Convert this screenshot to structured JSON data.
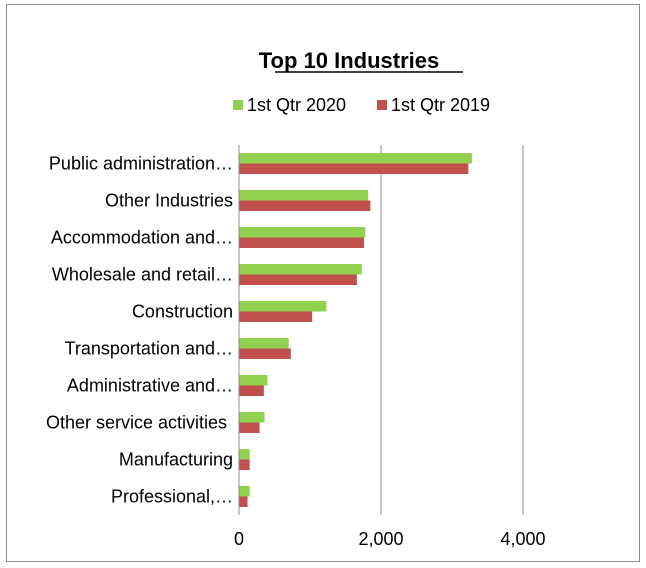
{
  "chart_data": {
    "type": "bar",
    "orientation": "horizontal",
    "title": "Top 10 Industries",
    "categories": [
      "Public administration…",
      "Other Industries",
      "Accommodation and…",
      "Wholesale and retail…",
      "Construction",
      "Transportation and…",
      "Administrative and…",
      "Other service activities",
      "Manufacturing",
      "Professional,…"
    ],
    "series": [
      {
        "name": "1st Qtr 2020",
        "color": "#92d050",
        "values": [
          3280,
          1820,
          1780,
          1730,
          1230,
          700,
          400,
          360,
          150,
          150
        ]
      },
      {
        "name": "1st Qtr 2019",
        "color": "#c0504d",
        "values": [
          3230,
          1850,
          1760,
          1660,
          1030,
          730,
          350,
          290,
          150,
          120
        ]
      }
    ],
    "xlim": [
      0,
      4000
    ],
    "xticks": [
      0,
      2000,
      4000
    ],
    "xtick_labels": [
      "0",
      "2,000",
      "4,000"
    ],
    "grid": "vertical",
    "legend": "top"
  }
}
